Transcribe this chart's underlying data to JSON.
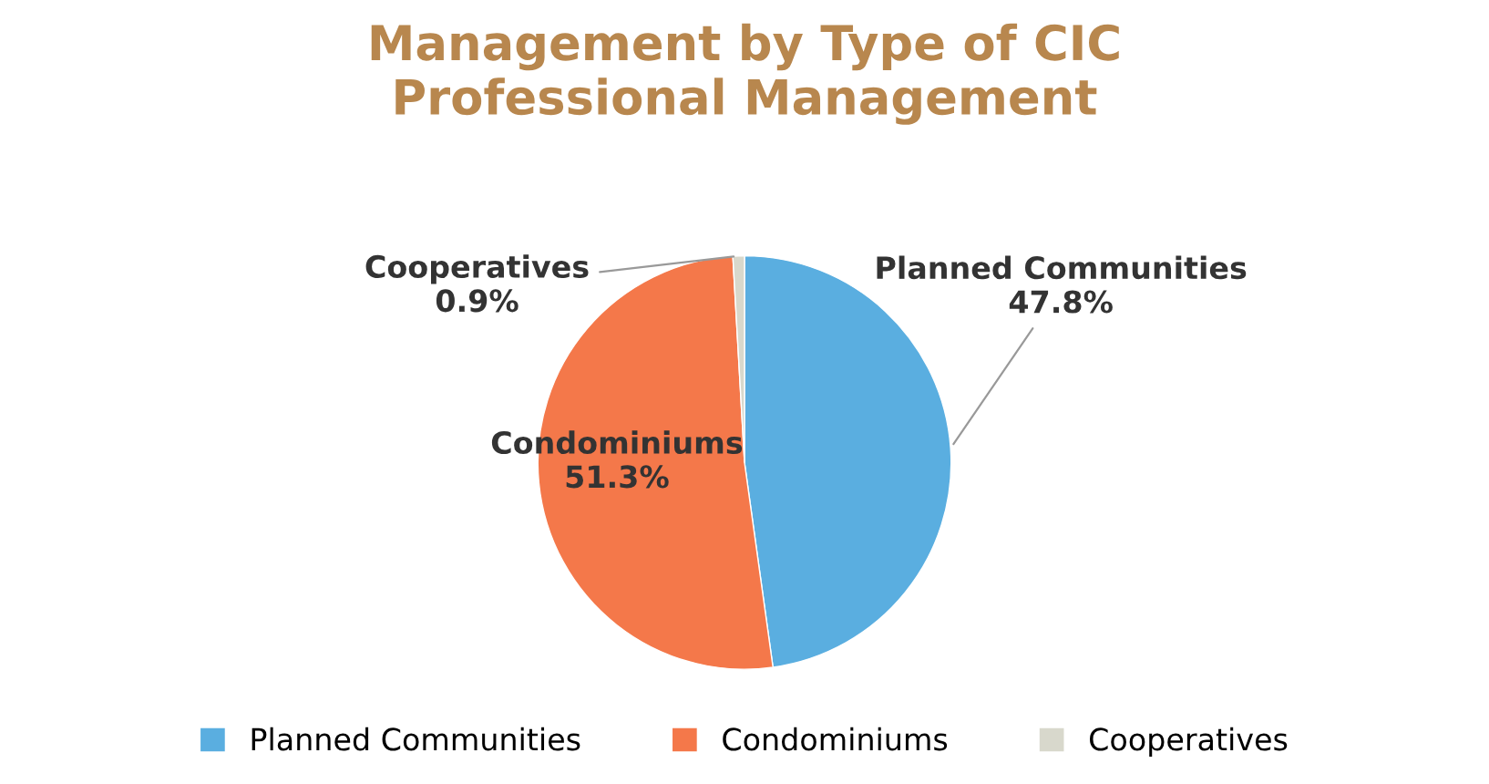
{
  "chart_data": {
    "type": "pie",
    "title": "Management by Type of CIC\nProfessional Management",
    "categories": [
      "Planned Communities",
      "Condominiums",
      "Cooperatives"
    ],
    "values": [
      47.8,
      51.3,
      0.9
    ],
    "value_labels": [
      "47.8%",
      "51.3%",
      "0.9%"
    ],
    "colors": [
      "#5aaee0",
      "#f4784a",
      "#d8d8cc"
    ],
    "legend": "bottom"
  }
}
